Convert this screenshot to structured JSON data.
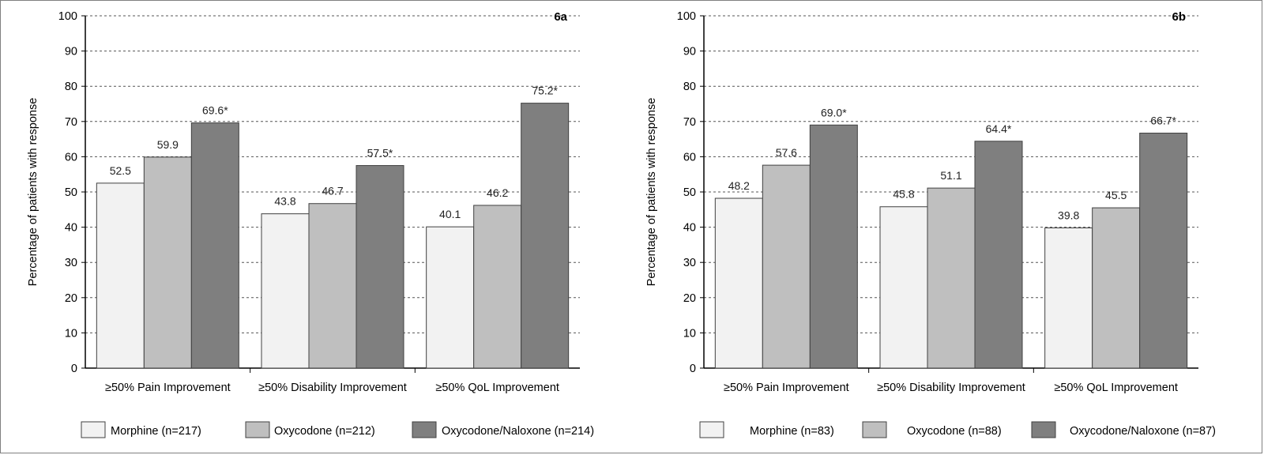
{
  "colors": {
    "morphine": "#f2f2f2",
    "oxycodone": "#bfbfbf",
    "oxycodone_naloxone": "#7f7f7f",
    "bar_stroke": "#404040"
  },
  "chart_data": [
    {
      "type": "bar",
      "panel_label": "6a",
      "ylabel": "Percentage of patients with response",
      "ylim": [
        0,
        100
      ],
      "yticks": [
        0,
        10,
        20,
        30,
        40,
        50,
        60,
        70,
        80,
        90,
        100
      ],
      "grid": "dashed horizontal",
      "categories": [
        "≥50% Pain Improvement",
        "≥50% Disability Improvement",
        "≥50% QoL Improvement"
      ],
      "series": [
        {
          "name": "Morphine (n=217)",
          "values": [
            52.5,
            43.8,
            40.1
          ],
          "labels": [
            "52.5",
            "43.8",
            "40.1"
          ]
        },
        {
          "name": "Oxycodone (n=212)",
          "values": [
            59.9,
            46.7,
            46.2
          ],
          "labels": [
            "59.9",
            "46.7",
            "46.2"
          ]
        },
        {
          "name": "Oxycodone/Naloxone (n=214)",
          "values": [
            69.6,
            57.5,
            75.2
          ],
          "labels": [
            "69.6*",
            "57.5*",
            "75.2*"
          ]
        }
      ],
      "legend_position": "bottom"
    },
    {
      "type": "bar",
      "panel_label": "6b",
      "ylabel": "Percentage of patients with response",
      "ylim": [
        0,
        100
      ],
      "yticks": [
        0,
        10,
        20,
        30,
        40,
        50,
        60,
        70,
        80,
        90,
        100
      ],
      "grid": "dashed horizontal",
      "categories": [
        "≥50% Pain Improvement",
        "≥50% Disability Improvement",
        "≥50% QoL Improvement"
      ],
      "series": [
        {
          "name": "Morphine (n=83)",
          "values": [
            48.2,
            45.8,
            39.8
          ],
          "labels": [
            "48.2",
            "45.8",
            "39.8"
          ]
        },
        {
          "name": "Oxycodone (n=88)",
          "values": [
            57.6,
            51.1,
            45.5
          ],
          "labels": [
            "57.6",
            "51.1",
            "45.5"
          ]
        },
        {
          "name": "Oxycodone/Naloxone (n=87)",
          "values": [
            69.0,
            64.4,
            66.7
          ],
          "labels": [
            "69.0*",
            "64.4*",
            "66.7*"
          ]
        }
      ],
      "legend_position": "bottom"
    }
  ]
}
